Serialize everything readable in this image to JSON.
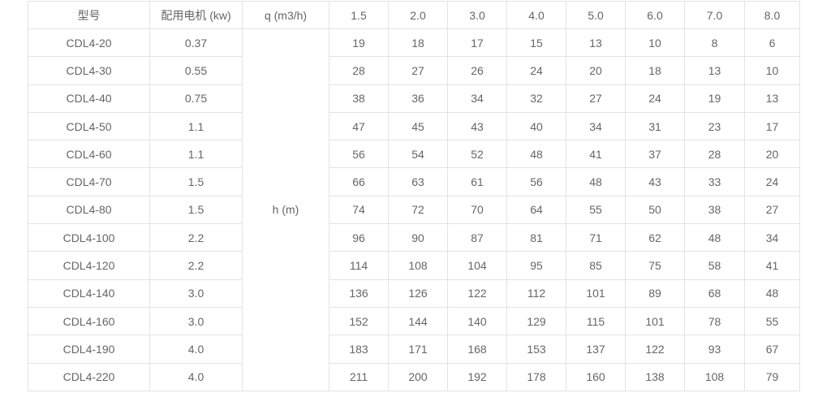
{
  "headers": {
    "model": "型号",
    "motor": "配用电机 (kw)",
    "flow": "q (m3/h)",
    "head_label": "h (m)"
  },
  "flow_values": [
    "1.5",
    "2.0",
    "3.0",
    "4.0",
    "5.0",
    "6.0",
    "7.0",
    "8.0"
  ],
  "rows": [
    {
      "model": "CDL4-20",
      "motor": "0.37",
      "h": [
        "19",
        "18",
        "17",
        "15",
        "13",
        "10",
        "8",
        "6"
      ]
    },
    {
      "model": "CDL4-30",
      "motor": "0.55",
      "h": [
        "28",
        "27",
        "26",
        "24",
        "20",
        "18",
        "13",
        "10"
      ]
    },
    {
      "model": "CDL4-40",
      "motor": "0.75",
      "h": [
        "38",
        "36",
        "34",
        "32",
        "27",
        "24",
        "19",
        "13"
      ]
    },
    {
      "model": "CDL4-50",
      "motor": "1.1",
      "h": [
        "47",
        "45",
        "43",
        "40",
        "34",
        "31",
        "23",
        "17"
      ]
    },
    {
      "model": "CDL4-60",
      "motor": "1.1",
      "h": [
        "56",
        "54",
        "52",
        "48",
        "41",
        "37",
        "28",
        "20"
      ]
    },
    {
      "model": "CDL4-70",
      "motor": "1.5",
      "h": [
        "66",
        "63",
        "61",
        "56",
        "48",
        "43",
        "33",
        "24"
      ]
    },
    {
      "model": "CDL4-80",
      "motor": "1.5",
      "h": [
        "74",
        "72",
        "70",
        "64",
        "55",
        "50",
        "38",
        "27"
      ]
    },
    {
      "model": "CDL4-100",
      "motor": "2.2",
      "h": [
        "96",
        "90",
        "87",
        "81",
        "71",
        "62",
        "48",
        "34"
      ]
    },
    {
      "model": "CDL4-120",
      "motor": "2.2",
      "h": [
        "114",
        "108",
        "104",
        "95",
        "85",
        "75",
        "58",
        "41"
      ]
    },
    {
      "model": "CDL4-140",
      "motor": "3.0",
      "h": [
        "136",
        "126",
        "122",
        "112",
        "101",
        "89",
        "68",
        "48"
      ]
    },
    {
      "model": "CDL4-160",
      "motor": "3.0",
      "h": [
        "152",
        "144",
        "140",
        "129",
        "115",
        "101",
        "78",
        "55"
      ]
    },
    {
      "model": "CDL4-190",
      "motor": "4.0",
      "h": [
        "183",
        "171",
        "168",
        "153",
        "137",
        "122",
        "93",
        "67"
      ]
    },
    {
      "model": "CDL4-220",
      "motor": "4.0",
      "h": [
        "211",
        "200",
        "192",
        "178",
        "160",
        "138",
        "108",
        "79"
      ]
    }
  ]
}
